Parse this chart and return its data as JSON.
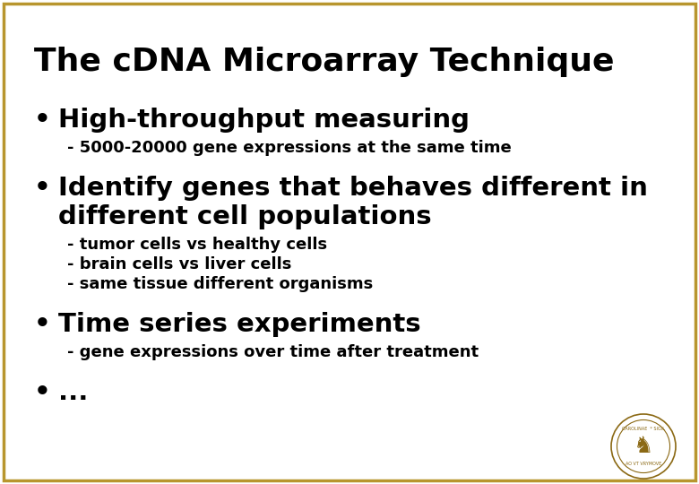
{
  "title": "The cDNA Microarray Technique",
  "title_fontsize": 26,
  "title_color": "#000000",
  "background_color": "#FFFFFF",
  "border_color": "#B8962E",
  "text_color": "#000000",
  "bullet_color": "#000000",
  "bullet_items": [
    {
      "bullet": "•",
      "main_text": "High-throughput measuring",
      "main_fontsize": 21,
      "sub_items": [
        "- 5000-20000 gene expressions at the same time"
      ],
      "sub_fontsize": 13
    },
    {
      "bullet": "•",
      "main_text": "Identify genes that behaves different in\ndifferent cell populations",
      "main_fontsize": 21,
      "sub_items": [
        "- tumor cells vs healthy cells",
        "- brain cells vs liver cells",
        "- same tissue different organisms"
      ],
      "sub_fontsize": 13
    },
    {
      "bullet": "•",
      "main_text": "Time series experiments",
      "main_fontsize": 21,
      "sub_items": [
        "- gene expressions over time after treatment"
      ],
      "sub_fontsize": 13
    },
    {
      "bullet": "•",
      "main_text": "...",
      "main_fontsize": 21,
      "sub_items": [],
      "sub_fontsize": 13
    }
  ],
  "figsize": [
    7.8,
    5.4
  ],
  "dpi": 100
}
